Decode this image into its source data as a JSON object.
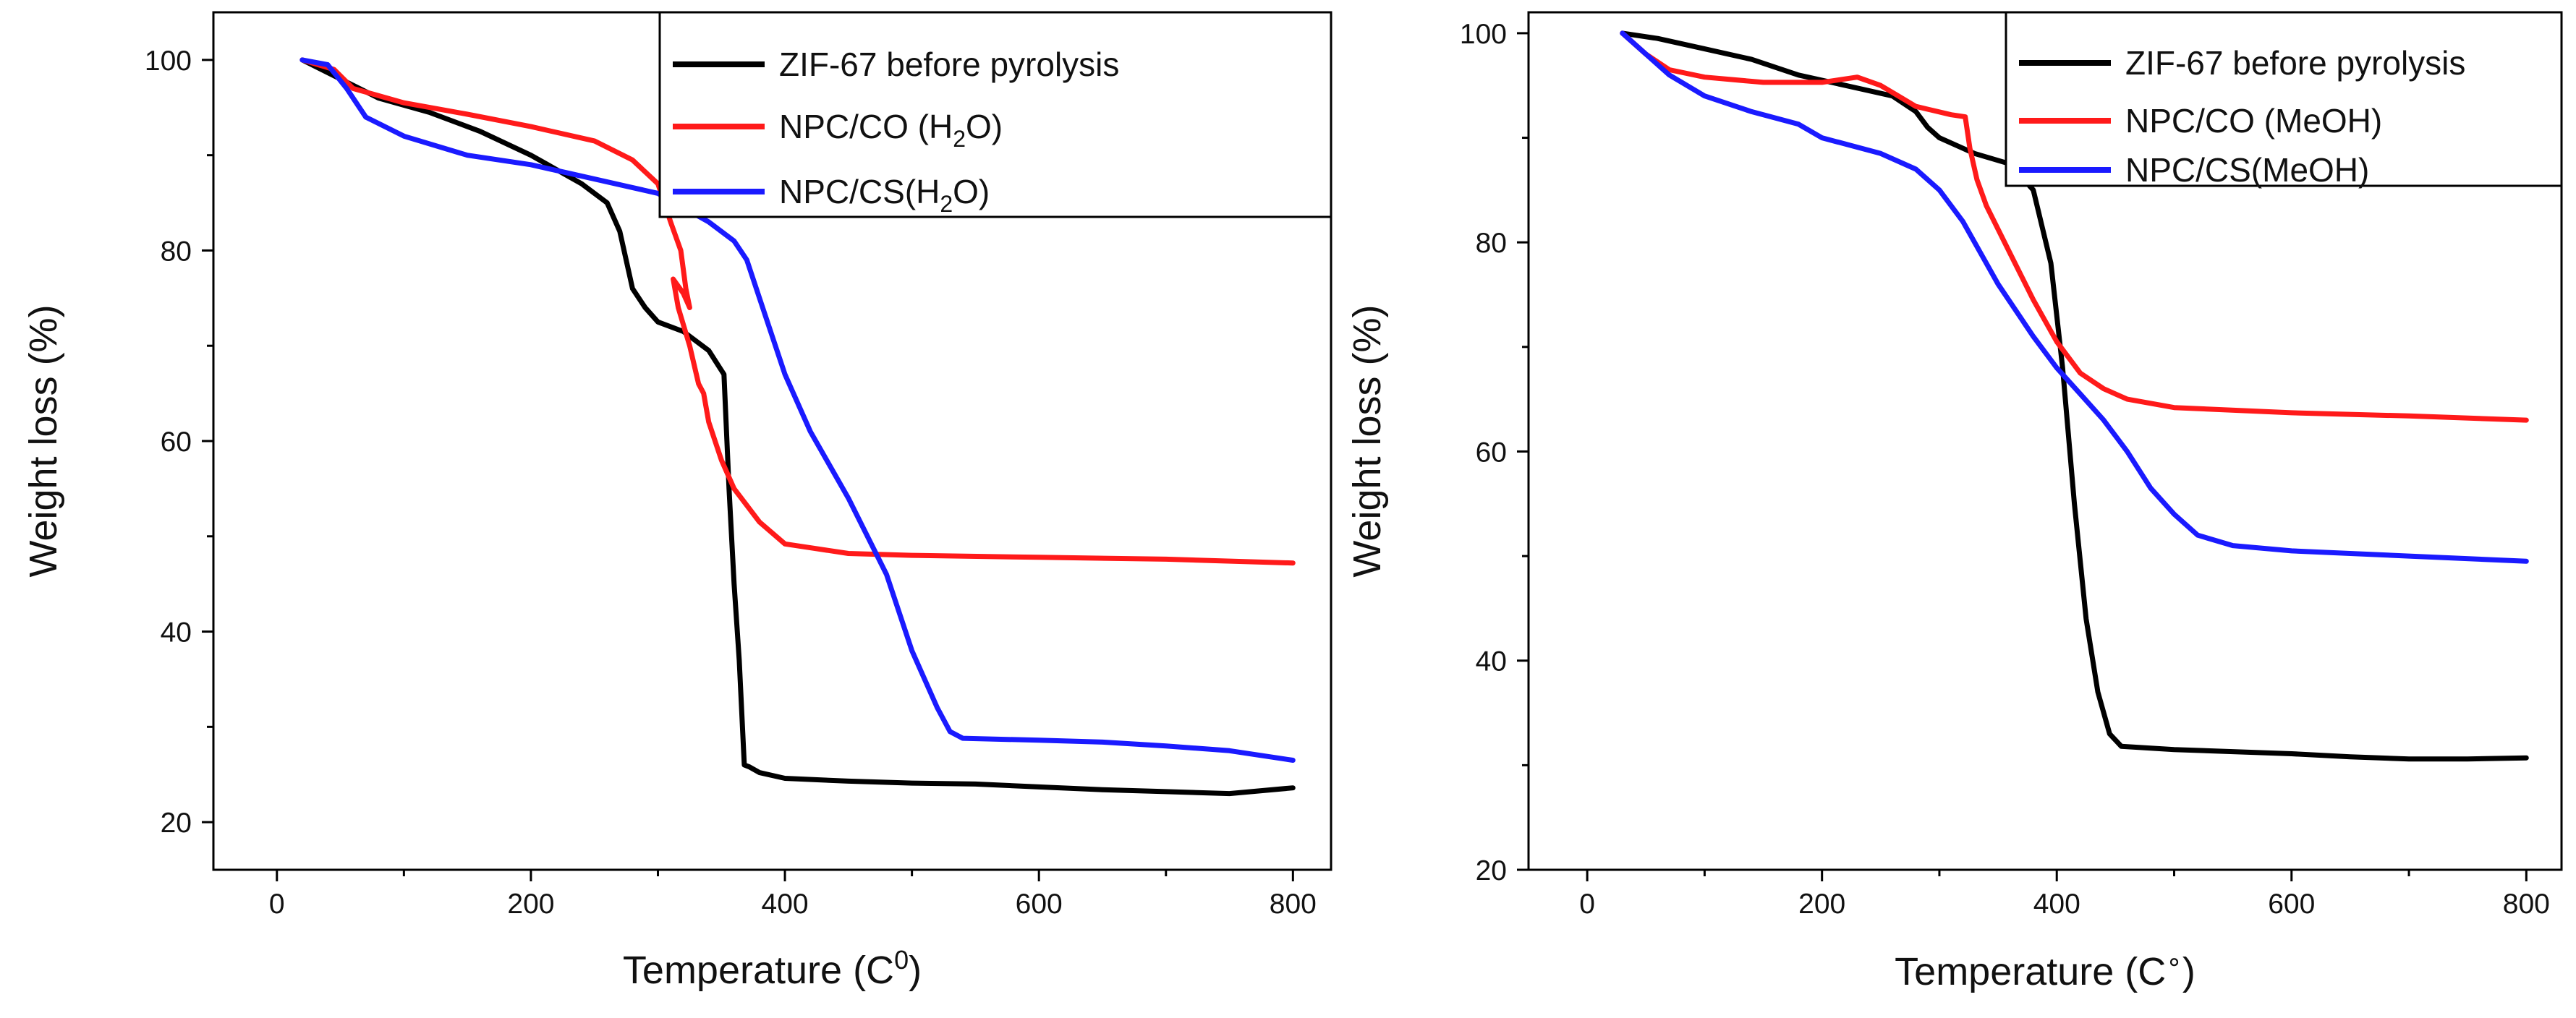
{
  "chart_data": [
    {
      "type": "line",
      "xlabel": "Temperature (C",
      "xlabel_sup": "0",
      "xlabel_end": ")",
      "ylabel": "Weight loss (%)",
      "xlim": [
        -50,
        830
      ],
      "ylim": [
        15,
        105
      ],
      "xticks": [
        0,
        200,
        400,
        600,
        800
      ],
      "yticks": [
        20,
        40,
        60,
        80,
        100
      ],
      "legend_position": "top-right",
      "series": [
        {
          "name": "ZIF-67 before pyrolysis",
          "label_parts": [
            "ZIF-67 before pyrolysis"
          ],
          "color": "#000000",
          "x": [
            20,
            50,
            80,
            120,
            160,
            200,
            240,
            260,
            270,
            280,
            290,
            300,
            320,
            340,
            352,
            356,
            360,
            364,
            368,
            372,
            380,
            400,
            450,
            500,
            550,
            600,
            650,
            700,
            750,
            800
          ],
          "y": [
            100,
            98,
            96,
            94.5,
            92.5,
            90,
            87,
            85,
            82,
            76,
            74,
            72.5,
            71.5,
            69.5,
            67,
            55,
            45,
            37,
            26,
            25.8,
            25.2,
            24.6,
            24.3,
            24.1,
            24.0,
            23.7,
            23.4,
            23.2,
            23.0,
            23.6
          ]
        },
        {
          "name": "NPC/CO (H2O)",
          "label_parts": [
            "NPC/CO (H",
            "2",
            "O)"
          ],
          "color": "#ff1a1a",
          "x": [
            20,
            45,
            60,
            100,
            150,
            200,
            250,
            280,
            300,
            310,
            318,
            322,
            325,
            320,
            312,
            316,
            325,
            332,
            336,
            340,
            350,
            360,
            380,
            400,
            450,
            500,
            600,
            700,
            800
          ],
          "y": [
            100,
            99,
            97,
            95.5,
            94.3,
            93,
            91.5,
            89.5,
            87,
            83,
            80,
            76,
            74,
            75.5,
            77,
            74,
            70,
            66,
            65,
            62,
            58,
            55,
            51.5,
            49.2,
            48.2,
            48,
            47.8,
            47.6,
            47.2
          ]
        },
        {
          "name": "NPC/CS(H2O)",
          "label_parts": [
            "NPC/CS(H",
            "2",
            "O)"
          ],
          "color": "#1a1aff",
          "x": [
            20,
            40,
            55,
            70,
            100,
            150,
            200,
            250,
            300,
            340,
            360,
            370,
            380,
            400,
            420,
            450,
            480,
            500,
            520,
            530,
            540,
            600,
            650,
            700,
            750,
            800
          ],
          "y": [
            100,
            99.5,
            97,
            94,
            92,
            90,
            89,
            87.5,
            86,
            83,
            81,
            79,
            75,
            67,
            61,
            54,
            46,
            38,
            32,
            29.5,
            28.8,
            28.6,
            28.4,
            28,
            27.5,
            26.5
          ]
        }
      ]
    },
    {
      "type": "line",
      "xlabel": "Temperature (C",
      "xlabel_sup": "∘",
      "xlabel_end": ")",
      "ylabel": "Weight loss (%)",
      "xlim": [
        -50,
        830
      ],
      "ylim": [
        20,
        102
      ],
      "xticks": [
        0,
        200,
        400,
        600,
        800
      ],
      "yticks": [
        20,
        40,
        60,
        80,
        100
      ],
      "legend_position": "top-right",
      "series": [
        {
          "name": "ZIF-67 before pyrolysis",
          "label_parts": [
            "ZIF-67 before pyrolysis"
          ],
          "color": "#000000",
          "x": [
            30,
            60,
            100,
            140,
            180,
            220,
            260,
            280,
            290,
            300,
            330,
            360,
            380,
            395,
            405,
            415,
            425,
            435,
            445,
            455,
            500,
            550,
            600,
            650,
            700,
            750,
            800
          ],
          "y": [
            100,
            99.5,
            98.5,
            97.5,
            96,
            95,
            94,
            92.5,
            91,
            90,
            88.5,
            87.5,
            85,
            78,
            68,
            55,
            44,
            37,
            33,
            31.8,
            31.5,
            31.3,
            31.1,
            30.8,
            30.6,
            30.6,
            30.7
          ]
        },
        {
          "name": "NPC/CO (MeOH)",
          "label_parts": [
            "NPC/CO (MeOH)"
          ],
          "color": "#ff1a1a",
          "x": [
            30,
            50,
            70,
            100,
            150,
            200,
            230,
            250,
            280,
            310,
            322,
            326,
            332,
            340,
            360,
            380,
            400,
            420,
            440,
            460,
            500,
            600,
            700,
            800
          ],
          "y": [
            100,
            98,
            96.5,
            95.8,
            95.3,
            95.3,
            95.8,
            95,
            93,
            92.2,
            92,
            89,
            86,
            83.5,
            79,
            74.5,
            70.5,
            67.5,
            66,
            65,
            64.2,
            63.7,
            63.4,
            63
          ]
        },
        {
          "name": "NPC/CS(MeOH)",
          "label_parts": [
            "NPC/CS(MeOH)"
          ],
          "color": "#1a1aff",
          "x": [
            30,
            50,
            70,
            100,
            140,
            180,
            200,
            250,
            280,
            300,
            320,
            350,
            380,
            400,
            420,
            440,
            460,
            480,
            500,
            520,
            550,
            600,
            700,
            800
          ],
          "y": [
            100,
            98,
            96,
            94,
            92.5,
            91.3,
            90,
            88.5,
            87,
            85,
            82,
            76,
            71,
            68,
            65.5,
            63,
            60,
            56.5,
            54,
            52,
            51,
            50.5,
            50,
            49.5
          ]
        }
      ]
    }
  ]
}
